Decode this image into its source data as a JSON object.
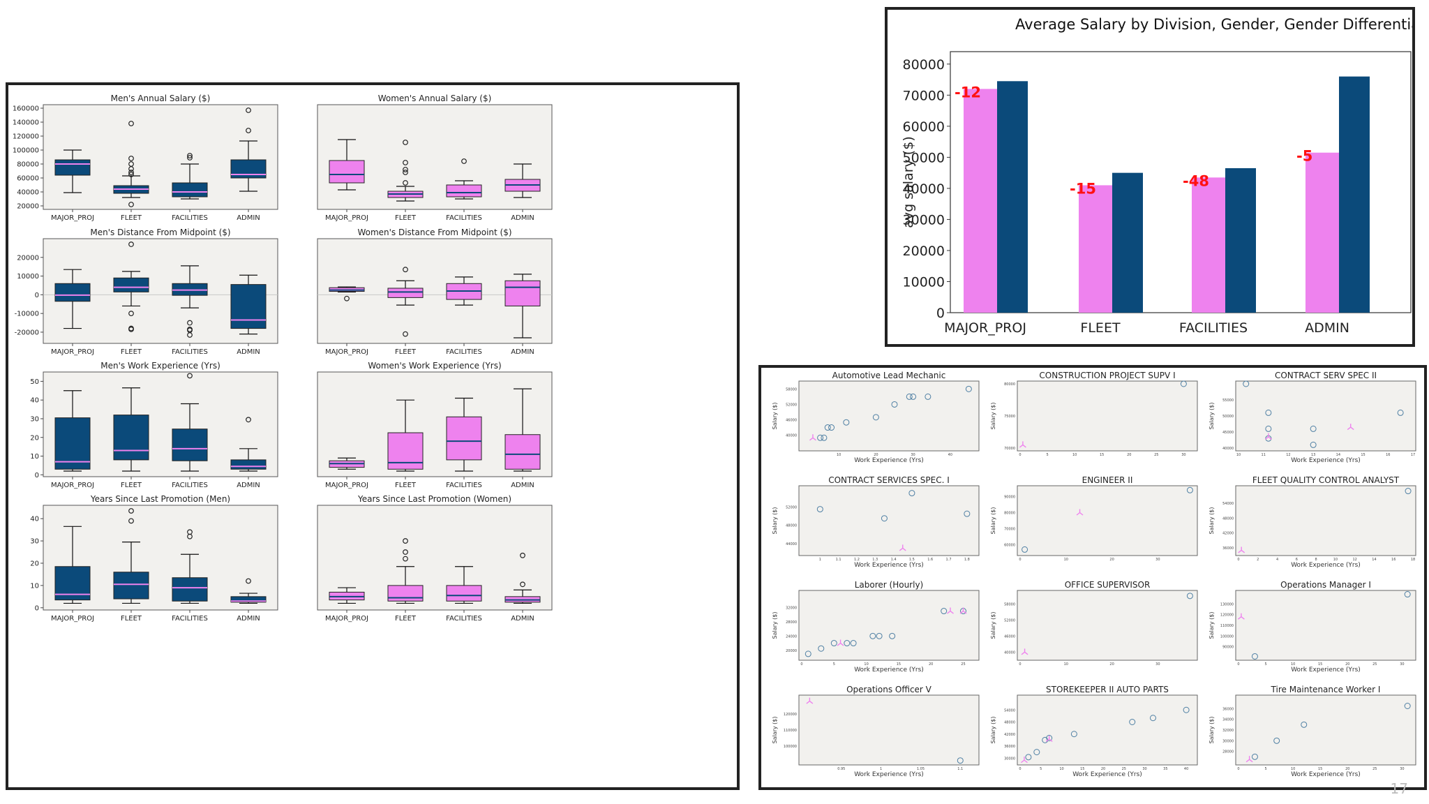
{
  "colors": {
    "men": "#0b4a7a",
    "women": "#ee82ee",
    "plot_bg": "#f2f1ee",
    "median_men": "#ee82ee",
    "median_women": "#0b4a7a",
    "diff_label": "#ff1111"
  },
  "page_number": "17",
  "chart_data": [
    {
      "id": "bp1",
      "type": "boxplot",
      "title": "Men's Annual Salary  ($)",
      "gender": "men",
      "categories": [
        "MAJOR_PROJ",
        "FLEET",
        "FACILITIES",
        "ADMIN"
      ],
      "ylim": [
        15000,
        165000
      ],
      "yticks": [
        20000,
        40000,
        60000,
        80000,
        100000,
        120000,
        140000,
        160000
      ],
      "boxes": [
        {
          "whislo": 39000,
          "q1": 64000,
          "med": 80000,
          "q3": 86000,
          "whishi": 100000,
          "fliers": []
        },
        {
          "whislo": 32000,
          "q1": 38000,
          "med": 44000,
          "q3": 49000,
          "whishi": 63000,
          "fliers": [
            22000,
            65000,
            68000,
            73000,
            80000,
            88000,
            138000
          ]
        },
        {
          "whislo": 30000,
          "q1": 33000,
          "med": 40000,
          "q3": 53000,
          "whishi": 80000,
          "fliers": [
            89000,
            92000
          ]
        },
        {
          "whislo": 41000,
          "q1": 60000,
          "med": 65000,
          "q3": 86000,
          "whishi": 113000,
          "fliers": [
            128000,
            157000
          ]
        }
      ]
    },
    {
      "id": "bp2",
      "type": "boxplot",
      "title": "Women's Annual Salary  ($)",
      "gender": "women",
      "categories": [
        "MAJOR_PROJ",
        "FLEET",
        "FACILITIES",
        "ADMIN"
      ],
      "ylim": [
        15000,
        165000
      ],
      "yticks": [],
      "boxes": [
        {
          "whislo": 43000,
          "q1": 53000,
          "med": 65000,
          "q3": 85000,
          "whishi": 115000,
          "fliers": []
        },
        {
          "whislo": 27000,
          "q1": 32000,
          "med": 37000,
          "q3": 41000,
          "whishi": 48000,
          "fliers": [
            53000,
            68000,
            72000,
            82000,
            111000
          ]
        },
        {
          "whislo": 30000,
          "q1": 33000,
          "med": 39000,
          "q3": 50000,
          "whishi": 56000,
          "fliers": [
            84000
          ]
        },
        {
          "whislo": 32000,
          "q1": 41000,
          "med": 50000,
          "q3": 58000,
          "whishi": 80000,
          "fliers": []
        }
      ]
    },
    {
      "id": "bp3",
      "type": "boxplot",
      "title": "Men's Distance From Midpoint ($)",
      "gender": "men",
      "categories": [
        "MAJOR_PROJ",
        "FLEET",
        "FACILITIES",
        "ADMIN"
      ],
      "ylim": [
        -26000,
        30000
      ],
      "yticks": [
        -20000,
        -10000,
        0,
        10000,
        20000
      ],
      "zero_line": true,
      "boxes": [
        {
          "whislo": -18000,
          "q1": -3500,
          "med": -200,
          "q3": 6000,
          "whishi": 13500,
          "fliers": []
        },
        {
          "whislo": -6000,
          "q1": 1500,
          "med": 4000,
          "q3": 9000,
          "whishi": 12500,
          "fliers": [
            -10000,
            -18000,
            -18500,
            27000
          ]
        },
        {
          "whislo": -7000,
          "q1": -300,
          "med": 2500,
          "q3": 6000,
          "whishi": 15500,
          "fliers": [
            -15000,
            -18500,
            -19000,
            -21500
          ]
        },
        {
          "whislo": -21000,
          "q1": -18000,
          "med": -13500,
          "q3": 5500,
          "whishi": 10500,
          "fliers": []
        }
      ]
    },
    {
      "id": "bp4",
      "type": "boxplot",
      "title": "Women's Distance From Midpoint ($)",
      "gender": "women",
      "categories": [
        "MAJOR_PROJ",
        "FLEET",
        "FACILITIES",
        "ADMIN"
      ],
      "ylim": [
        -26000,
        30000
      ],
      "yticks": [],
      "zero_line": true,
      "boxes": [
        {
          "whislo": 1500,
          "q1": 1800,
          "med": 2500,
          "q3": 3800,
          "whishi": 4200,
          "fliers": [
            -2000
          ]
        },
        {
          "whislo": -5500,
          "q1": -1500,
          "med": 1500,
          "q3": 3500,
          "whishi": 7500,
          "fliers": [
            13500,
            -21000
          ]
        },
        {
          "whislo": -5500,
          "q1": -2500,
          "med": 2000,
          "q3": 6000,
          "whishi": 9500,
          "fliers": []
        },
        {
          "whislo": -23000,
          "q1": -6000,
          "med": 4000,
          "q3": 7500,
          "whishi": 11000,
          "fliers": []
        }
      ]
    },
    {
      "id": "bp5",
      "type": "boxplot",
      "title": "Men's Work Experience (Yrs)",
      "gender": "men",
      "categories": [
        "MAJOR_PROJ",
        "FLEET",
        "FACILITIES",
        "ADMIN"
      ],
      "ylim": [
        -1,
        55
      ],
      "yticks": [
        0,
        10,
        20,
        30,
        40,
        50
      ],
      "boxes": [
        {
          "whislo": 2,
          "q1": 3,
          "med": 7,
          "q3": 30.5,
          "whishi": 45,
          "fliers": []
        },
        {
          "whislo": 2,
          "q1": 8,
          "med": 13,
          "q3": 32,
          "whishi": 46.5,
          "fliers": []
        },
        {
          "whislo": 2,
          "q1": 7.5,
          "med": 14,
          "q3": 24.5,
          "whishi": 38,
          "fliers": [
            53
          ]
        },
        {
          "whislo": 2,
          "q1": 3,
          "med": 4.5,
          "q3": 8,
          "whishi": 14,
          "fliers": [
            29.5
          ]
        }
      ]
    },
    {
      "id": "bp6",
      "type": "boxplot",
      "title": "Women's Work Experience (Yrs)",
      "gender": "women",
      "categories": [
        "MAJOR_PROJ",
        "FLEET",
        "FACILITIES",
        "ADMIN"
      ],
      "ylim": [
        -1,
        55
      ],
      "yticks": [],
      "boxes": [
        {
          "whislo": 3,
          "q1": 4,
          "med": 6,
          "q3": 7.5,
          "whishi": 9,
          "fliers": []
        },
        {
          "whislo": 2,
          "q1": 3,
          "med": 6.5,
          "q3": 22.5,
          "whishi": 40,
          "fliers": []
        },
        {
          "whislo": 2,
          "q1": 8,
          "med": 18,
          "q3": 31,
          "whishi": 41,
          "fliers": []
        },
        {
          "whislo": 2,
          "q1": 3,
          "med": 11,
          "q3": 21.5,
          "whishi": 46,
          "fliers": []
        }
      ]
    },
    {
      "id": "bp7",
      "type": "boxplot",
      "title": "Years Since Last Promotion (Men)",
      "gender": "men",
      "categories": [
        "MAJOR_PROJ",
        "FLEET",
        "FACILITIES",
        "ADMIN"
      ],
      "ylim": [
        -1,
        46
      ],
      "yticks": [
        0,
        10,
        20,
        30,
        40
      ],
      "boxes": [
        {
          "whislo": 2,
          "q1": 3.5,
          "med": 6,
          "q3": 18.5,
          "whishi": 36.5,
          "fliers": []
        },
        {
          "whislo": 2,
          "q1": 4,
          "med": 10.5,
          "q3": 16,
          "whishi": 29.5,
          "fliers": [
            39,
            43.5
          ]
        },
        {
          "whislo": 2,
          "q1": 3,
          "med": 9,
          "q3": 13.5,
          "whishi": 24,
          "fliers": [
            32,
            34
          ]
        },
        {
          "whislo": 2,
          "q1": 2.5,
          "med": 3,
          "q3": 5,
          "whishi": 6.5,
          "fliers": [
            12
          ]
        }
      ]
    },
    {
      "id": "bp8",
      "type": "boxplot",
      "title": "Years Since Last Promotion (Women)",
      "gender": "women",
      "categories": [
        "MAJOR_PROJ",
        "FLEET",
        "FACILITIES",
        "ADMIN"
      ],
      "ylim": [
        -1,
        46
      ],
      "yticks": [],
      "boxes": [
        {
          "whislo": 2,
          "q1": 3.5,
          "med": 5,
          "q3": 7,
          "whishi": 9,
          "fliers": []
        },
        {
          "whislo": 2,
          "q1": 3,
          "med": 4.5,
          "q3": 10,
          "whishi": 18.5,
          "fliers": [
            22,
            25,
            30
          ]
        },
        {
          "whislo": 2,
          "q1": 3,
          "med": 5.5,
          "q3": 10,
          "whishi": 18.5,
          "fliers": []
        },
        {
          "whislo": 2,
          "q1": 2.5,
          "med": 3.5,
          "q3": 5,
          "whishi": 8,
          "fliers": [
            10.5,
            23.5
          ]
        }
      ]
    },
    {
      "id": "bar",
      "type": "bar",
      "title": "Average Salary by Division, Gender, Gender Differential",
      "ylabel": "avg salary ($)",
      "categories": [
        "MAJOR_PROJ",
        "FLEET",
        "FACILITIES",
        "ADMIN"
      ],
      "ylim": [
        0,
        84000
      ],
      "yticks": [
        0,
        10000,
        20000,
        30000,
        40000,
        50000,
        60000,
        70000,
        80000
      ],
      "series": [
        {
          "name": "women",
          "values": [
            72000,
            41000,
            43500,
            51500
          ]
        },
        {
          "name": "men",
          "values": [
            74500,
            45000,
            46500,
            76000
          ]
        }
      ],
      "diff_labels": [
        "-12",
        "-15",
        "-48",
        "-5"
      ]
    },
    {
      "id": "s1",
      "type": "scatter",
      "title": "Automotive Lead Mechanic",
      "xlabel": "Work Experience  (Yrs)",
      "ylabel": "Salary  ($)",
      "xlim": [
        0,
        47
      ],
      "xticks": [
        10,
        20,
        30,
        40
      ],
      "ylim": [
        35000,
        60000
      ],
      "yticks": [
        40000,
        46000,
        52000,
        58000
      ],
      "men": [
        [
          5,
          39000
        ],
        [
          6,
          39000
        ],
        [
          7,
          43000
        ],
        [
          8,
          43000
        ],
        [
          12,
          45000
        ],
        [
          20,
          47000
        ],
        [
          25,
          52000
        ],
        [
          29,
          55000
        ],
        [
          30,
          55000
        ],
        [
          34,
          55000
        ],
        [
          45,
          58000
        ]
      ],
      "women": [
        [
          3,
          39000
        ]
      ]
    },
    {
      "id": "s2",
      "type": "scatter",
      "title": "CONSTRUCTION PROJECT SUPV I",
      "xlabel": "",
      "ylabel": "Salary  ($)",
      "xlim": [
        0,
        32
      ],
      "xticks": [
        0,
        5,
        10,
        15,
        20,
        25,
        30
      ],
      "ylim": [
        70000,
        80000
      ],
      "yticks": [
        70000,
        75000,
        80000
      ],
      "men": [
        [
          30,
          80000
        ]
      ],
      "women": [
        [
          0.5,
          70500
        ]
      ]
    },
    {
      "id": "s3",
      "type": "scatter",
      "title": "CONTRACT SERV SPEC II",
      "xlabel": "Work Experience  (Yrs)",
      "ylabel": "Salary  ($)",
      "xlim": [
        10,
        17
      ],
      "xticks": [
        10,
        11,
        12,
        13,
        14,
        15,
        16,
        17
      ],
      "ylim": [
        40000,
        60000
      ],
      "yticks": [
        40000,
        45000,
        50000,
        55000
      ],
      "men": [
        [
          10.3,
          60000
        ],
        [
          11.2,
          51000
        ],
        [
          11.2,
          46000
        ],
        [
          11.2,
          43000
        ],
        [
          13,
          46000
        ],
        [
          13,
          41000
        ],
        [
          16.5,
          51000
        ]
      ],
      "women": [
        [
          11.2,
          43500
        ],
        [
          14.5,
          46500
        ]
      ]
    },
    {
      "id": "s4",
      "type": "scatter",
      "title": "CONTRACT SERVICES SPEC. I",
      "xlabel": "Work Experience  (Yrs)",
      "ylabel": "Salary  ($)",
      "xlim": [
        0.9,
        1.85
      ],
      "xticks": [
        1.0,
        1.1,
        1.2,
        1.3,
        1.4,
        1.5,
        1.6,
        1.7,
        1.8
      ],
      "ylim": [
        42000,
        56000
      ],
      "yticks": [
        44000,
        48000,
        52000
      ],
      "men": [
        [
          1.0,
          51500
        ],
        [
          1.35,
          49500
        ],
        [
          1.5,
          55000
        ],
        [
          1.8,
          50500
        ]
      ],
      "women": [
        [
          1.45,
          43000
        ]
      ]
    },
    {
      "id": "s5",
      "type": "scatter",
      "title": "ENGINEER II",
      "xlabel": "",
      "ylabel": "Salary  ($)",
      "xlim": [
        0,
        38
      ],
      "xticks": [
        0,
        10,
        20,
        30
      ],
      "ylim": [
        55000,
        95000
      ],
      "yticks": [
        60000,
        70000,
        80000,
        90000
      ],
      "men": [
        [
          1,
          57000
        ],
        [
          37,
          94000
        ]
      ],
      "women": [
        [
          13,
          80000
        ]
      ]
    },
    {
      "id": "s6",
      "type": "scatter",
      "title": "FLEET QUALITY CONTROL ANALYST",
      "xlabel": "Work Experience  (Yrs)",
      "ylabel": "Salary  ($)",
      "xlim": [
        0,
        18
      ],
      "xticks": [
        0,
        2,
        4,
        6,
        8,
        10,
        12,
        14,
        16,
        18
      ],
      "ylim": [
        34000,
        60000
      ],
      "yticks": [
        36000,
        42000,
        48000,
        54000
      ],
      "men": [
        [
          17.5,
          59000
        ]
      ],
      "women": [
        [
          0.3,
          35000
        ]
      ]
    },
    {
      "id": "s7",
      "type": "scatter",
      "title": "Laborer (Hourly)",
      "xlabel": "Work Experience  (Yrs)",
      "ylabel": "Salary  ($)",
      "xlim": [
        0,
        27
      ],
      "xticks": [
        0,
        5,
        10,
        15,
        20,
        25
      ],
      "ylim": [
        18000,
        36000
      ],
      "yticks": [
        20000,
        24000,
        28000,
        32000
      ],
      "men": [
        [
          1,
          19000
        ],
        [
          3,
          20500
        ],
        [
          5,
          22000
        ],
        [
          7,
          22000
        ],
        [
          8,
          22000
        ],
        [
          11,
          24000
        ],
        [
          12,
          24000
        ],
        [
          14,
          24000
        ],
        [
          22,
          31000
        ],
        [
          25,
          31000
        ]
      ],
      "women": [
        [
          6,
          22000
        ],
        [
          23,
          31000
        ],
        [
          25,
          31000
        ]
      ]
    },
    {
      "id": "s8",
      "type": "scatter",
      "title": "OFFICE SUPERVISOR",
      "xlabel": "",
      "ylabel": "Salary  ($)",
      "xlim": [
        0,
        38
      ],
      "xticks": [
        0,
        10,
        20,
        30
      ],
      "ylim": [
        38000,
        62000
      ],
      "yticks": [
        40000,
        46000,
        52000,
        58000
      ],
      "men": [
        [
          37,
          61000
        ]
      ],
      "women": [
        [
          1,
          40000
        ]
      ]
    },
    {
      "id": "s9",
      "type": "scatter",
      "title": "Operations Manager I",
      "xlabel": "Work Experience  (Yrs)",
      "ylabel": "Salary  ($)",
      "xlim": [
        0,
        32
      ],
      "xticks": [
        0,
        5,
        10,
        15,
        20,
        25,
        30
      ],
      "ylim": [
        80000,
        140000
      ],
      "yticks": [
        90000,
        100000,
        110000,
        120000,
        130000
      ],
      "men": [
        [
          3,
          81000
        ],
        [
          31,
          139000
        ]
      ],
      "women": [
        [
          0.5,
          118000
        ]
      ]
    },
    {
      "id": "s10",
      "type": "scatter",
      "title": "Operations Officer V",
      "xlabel": "Work Experience  (Yrs)",
      "ylabel": "Salary  ($)",
      "xlim": [
        0.9,
        1.12
      ],
      "xticks": [
        0.95,
        1.0,
        1.05,
        1.1
      ],
      "ylim": [
        90000,
        130000
      ],
      "yticks": [
        100000,
        110000,
        120000
      ],
      "men": [
        [
          1.1,
          91000
        ]
      ],
      "women": [
        [
          0.91,
          128000
        ]
      ]
    },
    {
      "id": "s11",
      "type": "scatter",
      "title": "STOREKEEPER II AUTO PARTS",
      "xlabel": "Work Experience  (Yrs)",
      "ylabel": "Salary  ($)",
      "xlim": [
        0,
        42
      ],
      "xticks": [
        0,
        5,
        10,
        15,
        20,
        25,
        30,
        35,
        40
      ],
      "ylim": [
        28000,
        60000
      ],
      "yticks": [
        30000,
        36000,
        42000,
        48000,
        54000
      ],
      "men": [
        [
          2,
          30500
        ],
        [
          4,
          33000
        ],
        [
          6,
          39000
        ],
        [
          7,
          40000
        ],
        [
          13,
          42000
        ],
        [
          27,
          48000
        ],
        [
          32,
          50000
        ],
        [
          40,
          54000
        ]
      ],
      "women": [
        [
          1,
          29000
        ],
        [
          7,
          39500
        ]
      ]
    },
    {
      "id": "s12",
      "type": "scatter",
      "title": "Tire Maintenance Worker I",
      "xlabel": "Work Experience  (Yrs)",
      "ylabel": "Salary  ($)",
      "xlim": [
        0,
        32
      ],
      "xticks": [
        0,
        5,
        10,
        15,
        20,
        25,
        30
      ],
      "ylim": [
        26000,
        38000
      ],
      "yticks": [
        28000,
        30000,
        32000,
        34000,
        36000
      ],
      "men": [
        [
          3,
          27000
        ],
        [
          7,
          30000
        ],
        [
          12,
          33000
        ],
        [
          31,
          36500
        ]
      ],
      "women": [
        [
          2,
          26500
        ]
      ]
    }
  ]
}
